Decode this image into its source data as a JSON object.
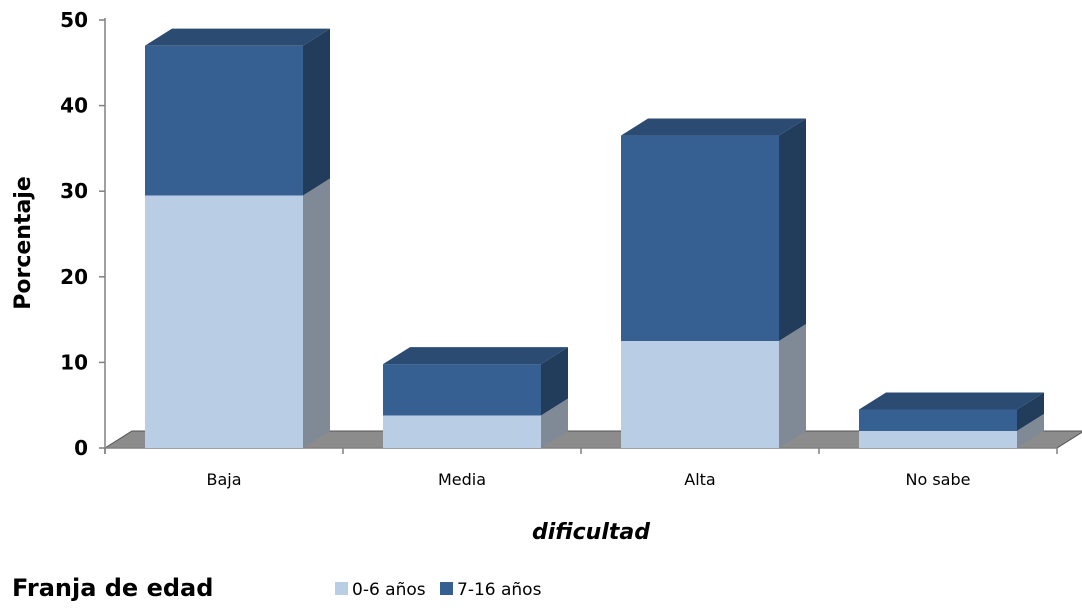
{
  "chart_data": {
    "type": "bar",
    "stacked": true,
    "three_d": true,
    "categories": [
      "Baja",
      "Media",
      "Alta",
      "No sabe"
    ],
    "series": [
      {
        "name": "0-6 años",
        "values": [
          29.5,
          3.8,
          12.5,
          2.0
        ],
        "color": "#b9cde5"
      },
      {
        "name": "7-16 años",
        "values": [
          17.5,
          6.0,
          24.0,
          2.5
        ],
        "color": "#376092"
      }
    ],
    "xlabel": "dificultad",
    "ylabel": "Porcentaje",
    "ylim": [
      0,
      50
    ],
    "yticks": [
      0,
      10,
      20,
      30,
      40,
      50
    ],
    "grid": false,
    "legend": {
      "title": "Franja de  edad",
      "position": "bottom-left"
    }
  }
}
